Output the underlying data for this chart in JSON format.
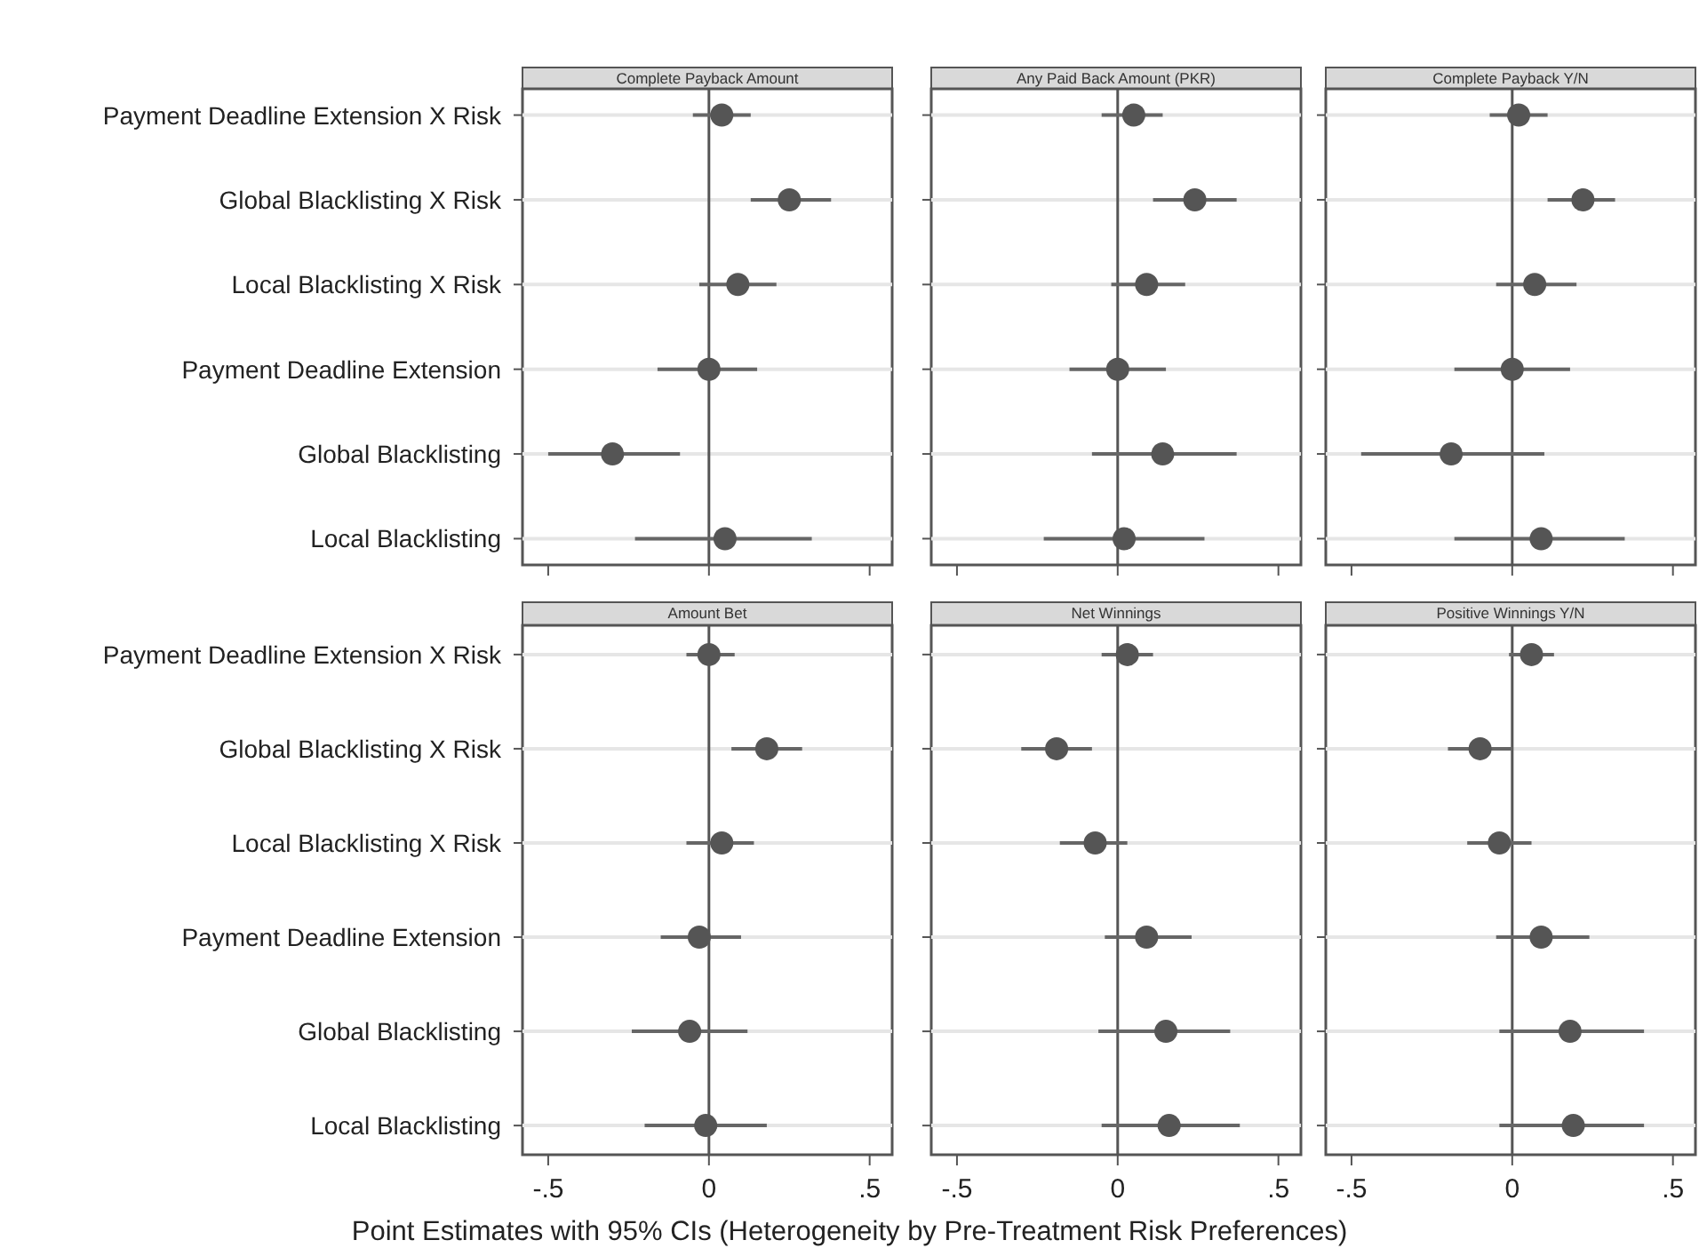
{
  "chart_data": [
    {
      "type": "scatter",
      "orientation": "horizontal",
      "title": "Complete Payback Amount",
      "categories": [
        "Payment Deadline Extension X Risk",
        "Global Blacklisting X Risk",
        "Local Blacklisting X Risk",
        "Payment Deadline Extension",
        "Global Blacklisting",
        "Local Blacklisting"
      ],
      "values": [
        0.04,
        0.25,
        0.09,
        0.0,
        -0.3,
        0.05
      ],
      "errors": [
        [
          -0.05,
          0.13
        ],
        [
          0.13,
          0.38
        ],
        [
          -0.03,
          0.21
        ],
        [
          -0.16,
          0.15
        ],
        [
          -0.5,
          -0.09
        ],
        [
          -0.23,
          0.32
        ]
      ],
      "color": "#555555",
      "marker": "circle",
      "xlim": [
        -0.58,
        0.57
      ],
      "xticks": [
        {
          "value": -0.5,
          "label": null
        },
        {
          "value": 0,
          "label": null
        },
        {
          "value": 0.5,
          "label": null
        }
      ],
      "ref_lines": [
        {
          "axis": "x",
          "value": 0,
          "color": "#555555"
        }
      ],
      "grid": "y",
      "tick_labels": "y"
    },
    {
      "type": "scatter",
      "orientation": "horizontal",
      "title": "Any Paid Back Amount (PKR)",
      "categories": [
        null,
        null,
        null,
        null,
        null,
        null
      ],
      "values": [
        0.05,
        0.24,
        0.09,
        0.0,
        0.14,
        0.02
      ],
      "errors": [
        [
          -0.05,
          0.14
        ],
        [
          0.11,
          0.37
        ],
        [
          -0.02,
          0.21
        ],
        [
          -0.15,
          0.15
        ],
        [
          -0.08,
          0.37
        ],
        [
          -0.23,
          0.27
        ]
      ],
      "color": "#555555",
      "marker": "circle",
      "xlim": [
        -0.58,
        0.57
      ],
      "xticks": [
        {
          "value": -0.5,
          "label": null
        },
        {
          "value": 0,
          "label": null
        },
        {
          "value": 0.5,
          "label": null
        }
      ],
      "ref_lines": [
        {
          "axis": "x",
          "value": 0,
          "color": "#555555"
        }
      ],
      "grid": "y",
      "tick_labels": false
    },
    {
      "type": "scatter",
      "orientation": "horizontal",
      "title": "Complete Payback Y/N",
      "categories": [
        null,
        null,
        null,
        null,
        null,
        null
      ],
      "values": [
        0.02,
        0.22,
        0.07,
        0.0,
        -0.19,
        0.09
      ],
      "errors": [
        [
          -0.07,
          0.11
        ],
        [
          0.11,
          0.32
        ],
        [
          -0.05,
          0.2
        ],
        [
          -0.18,
          0.18
        ],
        [
          -0.47,
          0.1
        ],
        [
          -0.18,
          0.35
        ]
      ],
      "color": "#555555",
      "marker": "circle",
      "xlim": [
        -0.58,
        0.57
      ],
      "xticks": [
        {
          "value": -0.5,
          "label": null
        },
        {
          "value": 0,
          "label": null
        },
        {
          "value": 0.5,
          "label": null
        }
      ],
      "ref_lines": [
        {
          "axis": "x",
          "value": 0,
          "color": "#555555"
        }
      ],
      "grid": "y",
      "tick_labels": false
    },
    {
      "type": "scatter",
      "orientation": "horizontal",
      "title": "Amount Bet",
      "categories": [
        "Payment Deadline Extension X Risk",
        "Global Blacklisting X Risk",
        "Local Blacklisting X Risk",
        "Payment Deadline Extension",
        "Global Blacklisting",
        "Local Blacklisting"
      ],
      "values": [
        0.0,
        0.18,
        0.04,
        -0.03,
        -0.06,
        -0.01
      ],
      "errors": [
        [
          -0.07,
          0.08
        ],
        [
          0.07,
          0.29
        ],
        [
          -0.07,
          0.14
        ],
        [
          -0.15,
          0.1
        ],
        [
          -0.24,
          0.12
        ],
        [
          -0.2,
          0.18
        ]
      ],
      "color": "#555555",
      "marker": "circle",
      "xlim": [
        -0.58,
        0.57
      ],
      "xticks": [
        {
          "value": -0.5,
          "label": "-.5"
        },
        {
          "value": 0,
          "label": "0"
        },
        {
          "value": 0.5,
          "label": ".5"
        }
      ],
      "ref_lines": [
        {
          "axis": "x",
          "value": 0,
          "color": "#555555"
        }
      ],
      "grid": "y"
    },
    {
      "type": "scatter",
      "orientation": "horizontal",
      "title": "Net Winnings",
      "xlabel": "Point Estimates with 95% CIs (Heterogeneity by Pre-Treatment Risk Preferences)",
      "categories": [
        null,
        null,
        null,
        null,
        null,
        null
      ],
      "values": [
        0.03,
        -0.19,
        -0.07,
        0.09,
        0.15,
        0.16
      ],
      "errors": [
        [
          -0.05,
          0.11
        ],
        [
          -0.3,
          -0.08
        ],
        [
          -0.18,
          0.03
        ],
        [
          -0.04,
          0.23
        ],
        [
          -0.06,
          0.35
        ],
        [
          -0.05,
          0.38
        ]
      ],
      "color": "#555555",
      "marker": "circle",
      "xlim": [
        -0.58,
        0.57
      ],
      "xticks": [
        {
          "value": -0.5,
          "label": "-.5"
        },
        0,
        {
          "value": 0.5,
          "label": ".5"
        }
      ],
      "ref_lines": [
        {
          "axis": "x",
          "value": 0,
          "color": "#555555"
        }
      ],
      "grid": "y",
      "tick_labels": "x"
    },
    {
      "type": "scatter",
      "orientation": "horizontal",
      "title": "Positive Winnings Y/N",
      "categories": [
        null,
        null,
        null,
        null,
        null,
        null
      ],
      "values": [
        0.06,
        -0.1,
        -0.04,
        0.09,
        0.18,
        0.19
      ],
      "errors": [
        [
          -0.01,
          0.13
        ],
        [
          -0.2,
          0.0
        ],
        [
          -0.14,
          0.06
        ],
        [
          -0.05,
          0.24
        ],
        [
          -0.04,
          0.41
        ],
        [
          -0.04,
          0.41
        ]
      ],
      "color": "#555555",
      "marker": "circle",
      "xlim": [
        -0.58,
        0.57
      ],
      "xticks": [
        {
          "value": -0.5,
          "label": "-.5"
        },
        0,
        {
          "value": 0.5,
          "label": ".5"
        }
      ],
      "ref_lines": [
        {
          "axis": "x",
          "value": 0,
          "color": "#555555"
        }
      ],
      "grid": "y",
      "tick_labels": "x"
    }
  ]
}
